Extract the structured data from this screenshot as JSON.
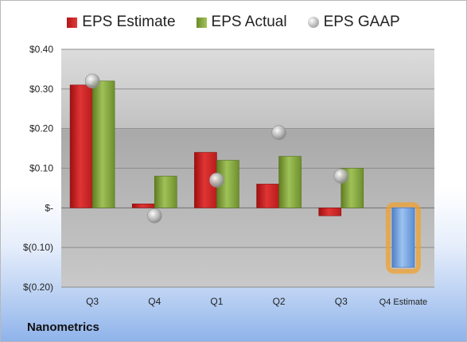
{
  "company": "Nanometrics",
  "legend": {
    "estimate": "EPS Estimate",
    "actual": "EPS Actual",
    "gaap": "EPS GAAP"
  },
  "colors": {
    "estimate": "#d62828",
    "actual": "#8aae43",
    "gaap": "#b5b5b5",
    "forecast": "#6f9fdf",
    "forecast_glow": "#f0a030"
  },
  "chart_data": {
    "type": "bar",
    "categories": [
      "Q3",
      "Q4",
      "Q1",
      "Q2",
      "Q3",
      "Q4 Estimate"
    ],
    "ylim": [
      -0.2,
      0.4
    ],
    "yticks": [
      0.4,
      0.3,
      0.2,
      0.1,
      0,
      -0.1,
      -0.2
    ],
    "ytick_labels": [
      "$0.40",
      "$0.30",
      "$0.20",
      "$0.10",
      "$-",
      "$(0.10)",
      "$(0.20)"
    ],
    "series": [
      {
        "name": "EPS Estimate",
        "values": [
          0.31,
          0.01,
          0.14,
          0.06,
          -0.02,
          -0.15
        ]
      },
      {
        "name": "EPS Actual",
        "values": [
          0.32,
          0.08,
          0.12,
          0.13,
          0.1,
          null
        ]
      },
      {
        "name": "EPS GAAP",
        "values": [
          0.32,
          -0.02,
          0.07,
          0.19,
          0.08,
          null
        ]
      }
    ],
    "forecast_category": "Q4 Estimate"
  }
}
